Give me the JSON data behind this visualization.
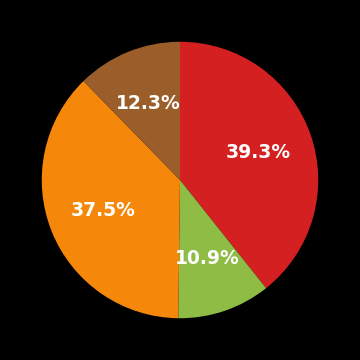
{
  "slices": [
    39.3,
    10.9,
    37.5,
    12.3
  ],
  "colors": [
    "#d42020",
    "#8fbc45",
    "#f5870a",
    "#9b5e2a"
  ],
  "labels": [
    "39.3%",
    "10.9%",
    "37.5%",
    "12.3%"
  ],
  "background_color": "#000000",
  "text_color": "#ffffff",
  "label_fontsize": 13.5,
  "startangle": 90,
  "label_r": 0.6
}
